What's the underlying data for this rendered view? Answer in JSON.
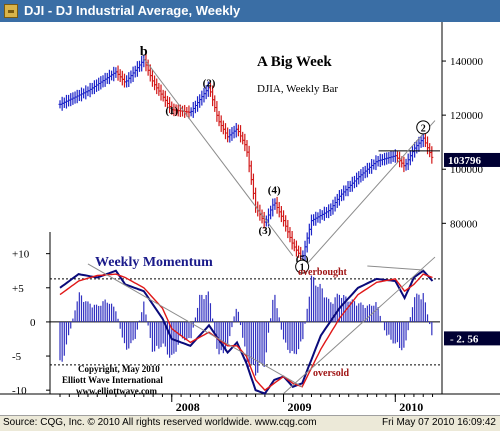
{
  "window": {
    "title": "DJI - DJ Industrial Average, Weekly",
    "status_left": "Source: CQG, Inc. © 2010 All rights reserved worldwide. www.cqg.com",
    "status_right": "Fri May 07 2010 16:09:42"
  },
  "colors": {
    "up_bar": "#1a22c8",
    "down_bar": "#d21818",
    "momentum_fast": "#0a0a7a",
    "momentum_slow": "#e01818",
    "histogram": "#3030c0",
    "trendline": "#8c8c8c",
    "annotation_red": "#a01414",
    "price_label_bg": "#000033"
  },
  "annotations": {
    "headline": "A Big Week",
    "subheadline": "DJIA, Weekly Bar",
    "momentum_title": "Weekly Momentum",
    "overbought": "overbought",
    "oversold": "oversold",
    "copyright_line1": "Copyright, May 2010",
    "copyright_line2": "Elliott Wave International",
    "copyright_line3": "www.elliottwave.com"
  },
  "chart_data": [
    {
      "type": "bar",
      "style": "ohlc",
      "title": "DJI - DJ Industrial Average, Weekly",
      "ylim": [
        62000,
        150000
      ],
      "y_ticks": [
        "140000",
        "120000",
        "100000",
        "80000"
      ],
      "x_tick_labels": [
        "2008",
        "2009",
        "2010"
      ],
      "last_price_label": "103796",
      "wave_labels": [
        {
          "label": "b",
          "date": "2007-10",
          "value": 142000
        },
        {
          "label": "(1)",
          "date": "2008-01",
          "value": 120500
        },
        {
          "label": "(2)",
          "date": "2008-05",
          "value": 130500
        },
        {
          "label": "(3)",
          "date": "2008-11",
          "value": 76000
        },
        {
          "label": "(4)",
          "date": "2008-12",
          "value": 91000
        },
        {
          "label": "(5)",
          "date": "2009-03",
          "value": 65500
        },
        {
          "label": "1",
          "date": "2009-03",
          "value": 62500
        },
        {
          "label": "2",
          "date": "2010-04",
          "value": 114000
        }
      ],
      "price_points": [
        {
          "x": "2007-01",
          "value": 124000
        },
        {
          "x": "2007-04",
          "value": 129000
        },
        {
          "x": "2007-07",
          "value": 136000
        },
        {
          "x": "2007-08",
          "value": 132000
        },
        {
          "x": "2007-10",
          "value": 140500
        },
        {
          "x": "2007-11",
          "value": 132000
        },
        {
          "x": "2008-01",
          "value": 122000
        },
        {
          "x": "2008-03",
          "value": 121000
        },
        {
          "x": "2008-05",
          "value": 130500
        },
        {
          "x": "2008-06",
          "value": 118000
        },
        {
          "x": "2008-07",
          "value": 112000
        },
        {
          "x": "2008-08",
          "value": 115000
        },
        {
          "x": "2008-09",
          "value": 108000
        },
        {
          "x": "2008-10",
          "value": 86000
        },
        {
          "x": "2008-11",
          "value": 80000
        },
        {
          "x": "2008-12",
          "value": 88000
        },
        {
          "x": "2009-01",
          "value": 81000
        },
        {
          "x": "2009-02",
          "value": 72000
        },
        {
          "x": "2009-03",
          "value": 67000
        },
        {
          "x": "2009-04",
          "value": 81000
        },
        {
          "x": "2009-06",
          "value": 85000
        },
        {
          "x": "2009-07",
          "value": 90000
        },
        {
          "x": "2009-09",
          "value": 97000
        },
        {
          "x": "2009-11",
          "value": 103000
        },
        {
          "x": "2010-01",
          "value": 105000
        },
        {
          "x": "2010-02",
          "value": 101000
        },
        {
          "x": "2010-03",
          "value": 107500
        },
        {
          "x": "2010-04",
          "value": 111500
        },
        {
          "x": "2010-05",
          "value": 103796
        }
      ],
      "grid": false,
      "y_axis_side": "right"
    },
    {
      "type": "line",
      "title": "Weekly Momentum",
      "ylim": [
        -11,
        12
      ],
      "y_ticks": [
        "+10",
        "+5",
        "0",
        "-5",
        "-10"
      ],
      "last_value_label": "- 2. 56",
      "overbought_level": 6.3,
      "oversold_level": -6.3,
      "series": [
        {
          "role": "fast",
          "values": [
            {
              "x": "2007-01",
              "value": 5.0
            },
            {
              "x": "2007-03",
              "value": 7.0
            },
            {
              "x": "2007-05",
              "value": 6.5
            },
            {
              "x": "2007-07",
              "value": 7.5
            },
            {
              "x": "2007-08",
              "value": 5.5
            },
            {
              "x": "2007-10",
              "value": 4.5
            },
            {
              "x": "2007-12",
              "value": 0.5
            },
            {
              "x": "2008-01",
              "value": -2.5
            },
            {
              "x": "2008-03",
              "value": -3.5
            },
            {
              "x": "2008-05",
              "value": -0.5
            },
            {
              "x": "2008-07",
              "value": -4.5
            },
            {
              "x": "2008-08",
              "value": -3.0
            },
            {
              "x": "2008-09",
              "value": -6.0
            },
            {
              "x": "2008-10",
              "value": -10.0
            },
            {
              "x": "2008-11",
              "value": -10.5
            },
            {
              "x": "2008-12",
              "value": -8.5
            },
            {
              "x": "2009-01",
              "value": -8.0
            },
            {
              "x": "2009-02",
              "value": -9.5
            },
            {
              "x": "2009-03",
              "value": -9.0
            },
            {
              "x": "2009-05",
              "value": -2.0
            },
            {
              "x": "2009-07",
              "value": 2.0
            },
            {
              "x": "2009-09",
              "value": 5.0
            },
            {
              "x": "2009-11",
              "value": 6.3
            },
            {
              "x": "2010-01",
              "value": 6.0
            },
            {
              "x": "2010-02",
              "value": 3.5
            },
            {
              "x": "2010-03",
              "value": 6.5
            },
            {
              "x": "2010-04",
              "value": 7.5
            },
            {
              "x": "2010-05",
              "value": 6.0
            }
          ]
        },
        {
          "role": "slow",
          "values": [
            {
              "x": "2007-01",
              "value": 4.0
            },
            {
              "x": "2007-03",
              "value": 6.0
            },
            {
              "x": "2007-05",
              "value": 6.8
            },
            {
              "x": "2007-07",
              "value": 7.0
            },
            {
              "x": "2007-08",
              "value": 6.5
            },
            {
              "x": "2007-10",
              "value": 5.0
            },
            {
              "x": "2007-12",
              "value": 2.0
            },
            {
              "x": "2008-01",
              "value": -1.0
            },
            {
              "x": "2008-03",
              "value": -3.0
            },
            {
              "x": "2008-05",
              "value": -1.5
            },
            {
              "x": "2008-07",
              "value": -3.5
            },
            {
              "x": "2008-08",
              "value": -3.5
            },
            {
              "x": "2008-09",
              "value": -5.0
            },
            {
              "x": "2008-10",
              "value": -8.5
            },
            {
              "x": "2008-11",
              "value": -10.0
            },
            {
              "x": "2008-12",
              "value": -9.0
            },
            {
              "x": "2009-01",
              "value": -8.0
            },
            {
              "x": "2009-02",
              "value": -9.0
            },
            {
              "x": "2009-03",
              "value": -9.5
            },
            {
              "x": "2009-05",
              "value": -4.0
            },
            {
              "x": "2009-07",
              "value": 0.5
            },
            {
              "x": "2009-09",
              "value": 4.0
            },
            {
              "x": "2009-11",
              "value": 5.8
            },
            {
              "x": "2010-01",
              "value": 6.3
            },
            {
              "x": "2010-02",
              "value": 4.5
            },
            {
              "x": "2010-03",
              "value": 5.5
            },
            {
              "x": "2010-04",
              "value": 7.0
            },
            {
              "x": "2010-05",
              "value": 6.5
            }
          ]
        }
      ],
      "histogram": [
        {
          "x": "2007-01",
          "value": -7.5
        },
        {
          "x": "2007-02",
          "value": -2.0
        },
        {
          "x": "2007-03",
          "value": 4.5
        },
        {
          "x": "2007-04",
          "value": 3.0
        },
        {
          "x": "2007-05",
          "value": 2.5
        },
        {
          "x": "2007-06",
          "value": 3.5
        },
        {
          "x": "2007-07",
          "value": 2.0
        },
        {
          "x": "2007-08",
          "value": -4.5
        },
        {
          "x": "2007-09",
          "value": -3.0
        },
        {
          "x": "2007-10",
          "value": 3.0
        },
        {
          "x": "2007-11",
          "value": -5.0
        },
        {
          "x": "2007-12",
          "value": -3.5
        },
        {
          "x": "2008-01",
          "value": -6.0
        },
        {
          "x": "2008-02",
          "value": -2.5
        },
        {
          "x": "2008-03",
          "value": -3.0
        },
        {
          "x": "2008-04",
          "value": 4.0
        },
        {
          "x": "2008-05",
          "value": 4.5
        },
        {
          "x": "2008-06",
          "value": -5.5
        },
        {
          "x": "2008-07",
          "value": -4.0
        },
        {
          "x": "2008-08",
          "value": 3.0
        },
        {
          "x": "2008-09",
          "value": -6.0
        },
        {
          "x": "2008-10",
          "value": -8.0
        },
        {
          "x": "2008-11",
          "value": -6.5
        },
        {
          "x": "2008-12",
          "value": 5.0
        },
        {
          "x": "2009-01",
          "value": -3.0
        },
        {
          "x": "2009-02",
          "value": -5.5
        },
        {
          "x": "2009-03",
          "value": -3.5
        },
        {
          "x": "2009-04",
          "value": 7.0
        },
        {
          "x": "2009-05",
          "value": 5.5
        },
        {
          "x": "2009-06",
          "value": 3.0
        },
        {
          "x": "2009-07",
          "value": 4.5
        },
        {
          "x": "2009-08",
          "value": 3.5
        },
        {
          "x": "2009-09",
          "value": 3.0
        },
        {
          "x": "2009-10",
          "value": 2.5
        },
        {
          "x": "2009-11",
          "value": 3.0
        },
        {
          "x": "2009-12",
          "value": -2.0
        },
        {
          "x": "2010-01",
          "value": -3.5
        },
        {
          "x": "2010-02",
          "value": -4.5
        },
        {
          "x": "2010-03",
          "value": 4.0
        },
        {
          "x": "2010-04",
          "value": 4.5
        },
        {
          "x": "2010-05",
          "value": -2.56
        }
      ]
    }
  ]
}
